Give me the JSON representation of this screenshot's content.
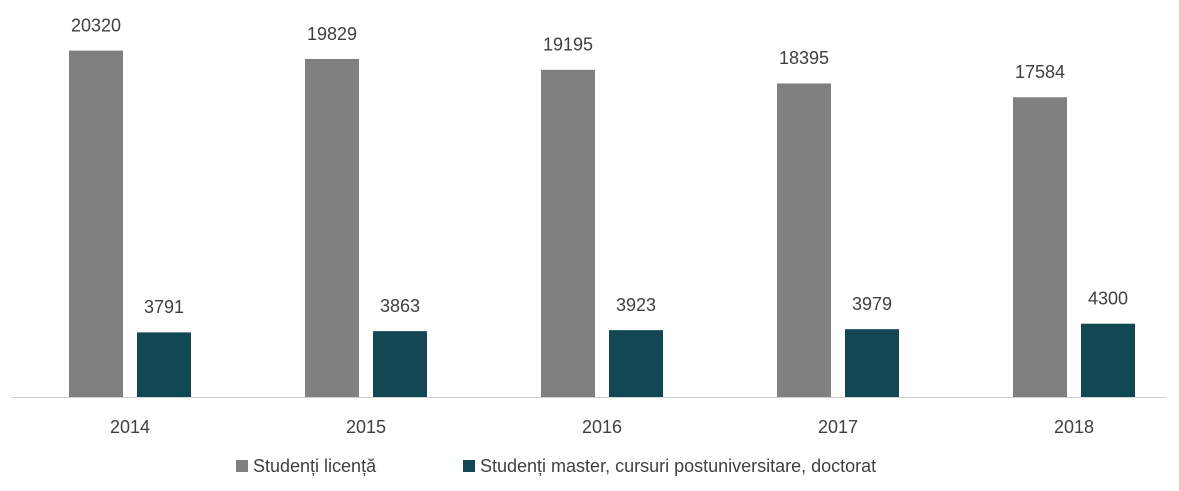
{
  "chart_data": {
    "type": "bar",
    "categories": [
      "2014",
      "2015",
      "2016",
      "2017",
      "2018"
    ],
    "series": [
      {
        "name": "Studenți licență",
        "color": "#808080",
        "values": [
          20320,
          19829,
          19195,
          18395,
          17584
        ]
      },
      {
        "name": "Studenți master, cursuri postuniversitare, doctorat",
        "color": "#134753",
        "values": [
          3791,
          3863,
          3923,
          3979,
          4300
        ]
      }
    ],
    "ylim": [
      0,
      22000
    ],
    "legend": "bottom"
  }
}
